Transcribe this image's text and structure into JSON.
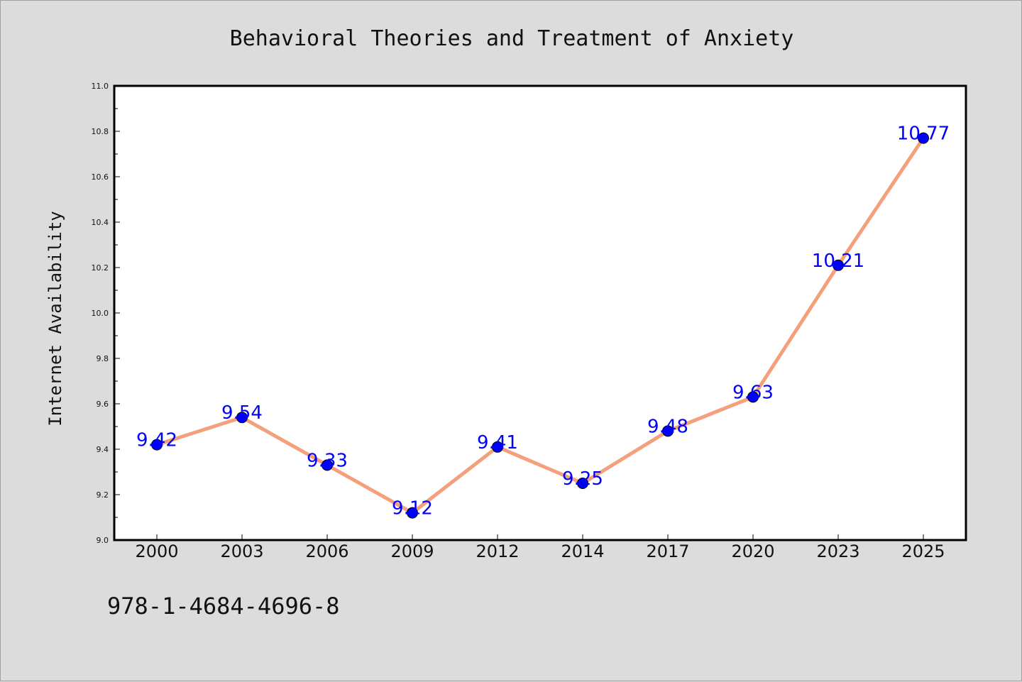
{
  "chart_data": {
    "type": "line",
    "title": "Behavioral Theories and Treatment of Anxiety",
    "xlabel": "",
    "ylabel": "Internet Availability",
    "categories": [
      "2000",
      "2003",
      "2006",
      "2009",
      "2012",
      "2014",
      "2017",
      "2020",
      "2023",
      "2025"
    ],
    "series": [
      {
        "values": [
          9.42,
          9.54,
          9.33,
          9.12,
          9.41,
          9.25,
          9.48,
          9.63,
          10.21,
          10.77
        ],
        "line_color": "#f4a07c",
        "marker_color": "#0000ff"
      }
    ],
    "data_labels": [
      "9.42",
      "9.54",
      "9.33",
      "9.12",
      "9.41",
      "9.25",
      "9.48",
      "9.63",
      "10.21",
      "10.77"
    ],
    "ylim": [
      9.0,
      11.0
    ],
    "yticks": [
      "9.0",
      "9.2",
      "9.4",
      "9.6",
      "9.8",
      "10.0",
      "10.2",
      "10.4",
      "10.6",
      "10.8",
      "11.0"
    ],
    "grid": false,
    "legend": "none"
  },
  "footer": {
    "isbn": "978-1-4684-4696-8"
  },
  "colors": {
    "background": "#dcdcdc",
    "plot_background": "#ffffff",
    "data_label": "#0000ff"
  }
}
